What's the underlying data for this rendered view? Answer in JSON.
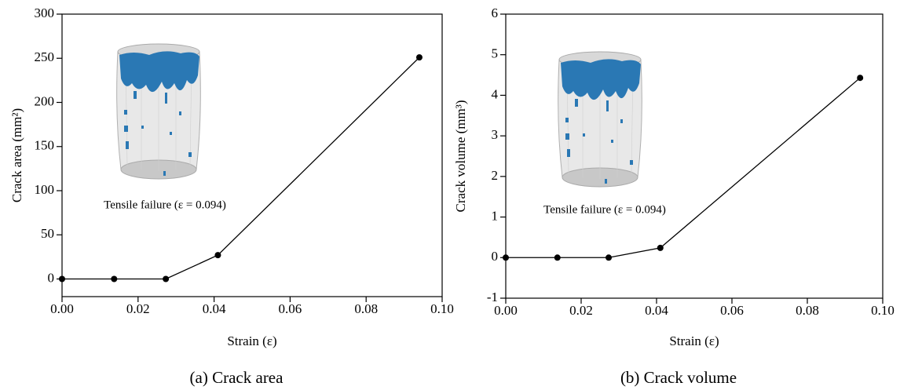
{
  "chart_data": [
    {
      "type": "line",
      "caption": "(a)   Crack area",
      "xlabel": "Strain (ε)",
      "ylabel": "Crack area (mm²)",
      "annotation": "Tensile failure (ε = 0.094)",
      "x": [
        0,
        0.0137,
        0.0273,
        0.041,
        0.094
      ],
      "values": [
        0,
        0,
        0,
        27,
        251
      ],
      "xlim": [
        0,
        0.1
      ],
      "ylim": [
        -20,
        300
      ],
      "xticks": [
        {
          "value": 0,
          "label": "0.00"
        },
        {
          "value": 0.02,
          "label": "0.02"
        },
        {
          "value": 0.04,
          "label": "0.04"
        },
        {
          "value": 0.06,
          "label": "0.06"
        },
        {
          "value": 0.08,
          "label": "0.08"
        },
        {
          "value": 0.1,
          "label": "0.10"
        }
      ],
      "yticks": [
        0,
        50,
        100,
        150,
        200,
        250,
        300
      ],
      "color": "#000000"
    },
    {
      "type": "line",
      "caption": "(b) Crack volume",
      "xlabel": "Strain (ε)",
      "ylabel": "Crack volume (mm³)",
      "annotation": "Tensile failure (ε = 0.094)",
      "x": [
        0,
        0.0137,
        0.0273,
        0.041,
        0.094
      ],
      "values": [
        0,
        0,
        0,
        0.24,
        4.43
      ],
      "xlim": [
        0,
        0.1
      ],
      "ylim": [
        -1,
        6
      ],
      "xticks": [
        {
          "value": 0,
          "label": "0.00"
        },
        {
          "value": 0.02,
          "label": "0.02"
        },
        {
          "value": 0.04,
          "label": "0.04"
        },
        {
          "value": 0.06,
          "label": "0.06"
        },
        {
          "value": 0.08,
          "label": "0.08"
        },
        {
          "value": 0.1,
          "label": "0.10"
        }
      ],
      "yticks": [
        -1,
        0,
        1,
        2,
        3,
        4,
        5,
        6
      ],
      "color": "#000000"
    }
  ]
}
